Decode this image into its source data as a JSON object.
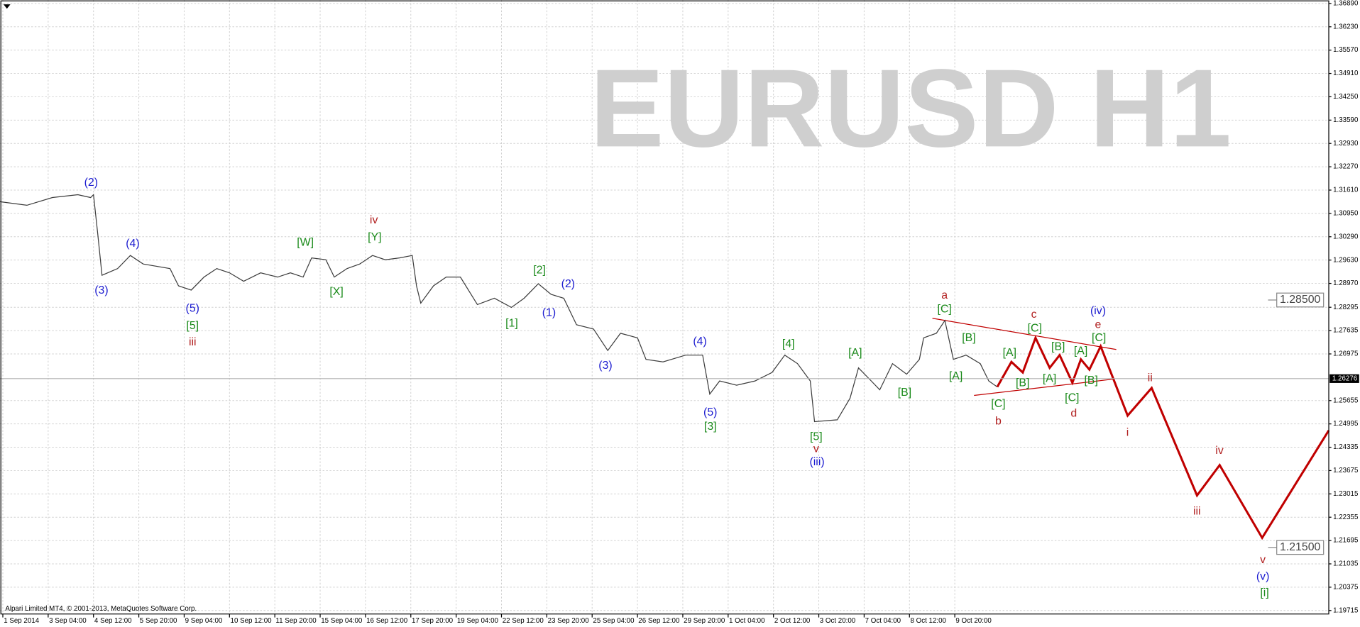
{
  "chart_data": {
    "type": "line",
    "watermark": "EURUSD H1",
    "copyright": "Alpari Limited MT4, © 2001-2013, MetaQuotes Software Corp.",
    "xlim": [
      -2,
      936
    ],
    "ylim": [
      1.19617,
      1.36988
    ],
    "grid": true,
    "xticks": [
      {
        "value": 0,
        "label": "1 Sep 2014"
      },
      {
        "value": 32,
        "label": "3 Sep 04:00"
      },
      {
        "value": 64,
        "label": "4 Sep 12:00"
      },
      {
        "value": 96,
        "label": "5 Sep 20:00"
      },
      {
        "value": 128,
        "label": "9 Sep 04:00"
      },
      {
        "value": 160,
        "label": "10 Sep 12:00"
      },
      {
        "value": 192,
        "label": "11 Sep 20:00"
      },
      {
        "value": 224,
        "label": "15 Sep 04:00"
      },
      {
        "value": 256,
        "label": "16 Sep 12:00"
      },
      {
        "value": 288,
        "label": "17 Sep 20:00"
      },
      {
        "value": 320,
        "label": "19 Sep 04:00"
      },
      {
        "value": 352,
        "label": "22 Sep 12:00"
      },
      {
        "value": 384,
        "label": "23 Sep 20:00"
      },
      {
        "value": 416,
        "label": "25 Sep 04:00"
      },
      {
        "value": 448,
        "label": "26 Sep 12:00"
      },
      {
        "value": 480,
        "label": "29 Sep 20:00"
      },
      {
        "value": 512,
        "label": "1 Oct 04:00"
      },
      {
        "value": 544,
        "label": "2 Oct 12:00"
      },
      {
        "value": 576,
        "label": "3 Oct 20:00"
      },
      {
        "value": 608,
        "label": "7 Oct 04:00"
      },
      {
        "value": 640,
        "label": "8 Oct 12:00"
      },
      {
        "value": 672,
        "label": "9 Oct 20:00"
      }
    ],
    "yticks": [
      {
        "value": 1.3689,
        "label": "1.36890"
      },
      {
        "value": 1.3623,
        "label": "1.36230"
      },
      {
        "value": 1.3557,
        "label": "1.35570"
      },
      {
        "value": 1.3491,
        "label": "1.34910"
      },
      {
        "value": 1.3425,
        "label": "1.34250"
      },
      {
        "value": 1.3359,
        "label": "1.33590"
      },
      {
        "value": 1.3293,
        "label": "1.32930"
      },
      {
        "value": 1.3227,
        "label": "1.32270"
      },
      {
        "value": 1.3161,
        "label": "1.31610"
      },
      {
        "value": 1.3095,
        "label": "1.30950"
      },
      {
        "value": 1.3029,
        "label": "1.30290"
      },
      {
        "value": 1.2963,
        "label": "1.29630"
      },
      {
        "value": 1.2897,
        "label": "1.28970"
      },
      {
        "value": 1.28295,
        "label": "1.28295"
      },
      {
        "value": 1.27635,
        "label": "1.27635"
      },
      {
        "value": 1.26975,
        "label": "1.26975"
      },
      {
        "value": 1.25655,
        "label": "1.25655"
      },
      {
        "value": 1.24995,
        "label": "1.24995"
      },
      {
        "value": 1.24335,
        "label": "1.24335"
      },
      {
        "value": 1.23675,
        "label": "1.23675"
      },
      {
        "value": 1.23015,
        "label": "1.23015"
      },
      {
        "value": 1.22355,
        "label": "1.22355"
      },
      {
        "value": 1.21695,
        "label": "1.21695"
      },
      {
        "value": 1.21035,
        "label": "1.21035"
      },
      {
        "value": 1.20375,
        "label": "1.20375"
      },
      {
        "value": 1.19715,
        "label": "1.19715"
      }
    ],
    "price_labels": [
      {
        "value": 1.285,
        "label": "1.28500",
        "style": "level"
      },
      {
        "value": 1.26276,
        "label": "1.26276",
        "style": "current"
      },
      {
        "value": 1.215,
        "label": "1.21500",
        "style": "level"
      }
    ],
    "series": [
      {
        "color": "#3c3c3c",
        "x": [
          -2,
          17,
          35,
          53,
          62,
          64,
          67,
          70,
          81,
          90,
          99,
          118,
          124,
          133,
          142,
          151,
          160,
          170,
          182,
          194,
          203,
          212,
          218,
          228,
          234,
          243,
          252,
          261,
          270,
          280,
          289,
          292,
          295,
          304,
          313,
          323,
          335,
          347,
          359,
          368,
          378,
          387,
          396,
          405,
          417,
          427,
          436,
          448,
          454,
          466,
          482,
          494,
          499,
          506,
          518,
          531,
          543,
          552,
          561,
          570,
          573,
          589,
          598,
          604,
          613,
          619,
          628,
          638,
          647,
          650,
          659,
          665,
          671,
          680,
          690,
          696,
          702
        ],
        "values": [
          1.3128,
          1.3118,
          1.314,
          1.3148,
          1.314,
          1.3148,
          1.3037,
          1.292,
          1.2939,
          1.2976,
          1.2952,
          1.2939,
          1.289,
          1.2878,
          1.2915,
          1.2939,
          1.2927,
          1.2903,
          1.2927,
          1.2915,
          1.2927,
          1.2915,
          1.2969,
          1.2964,
          1.2915,
          1.2939,
          1.2952,
          1.2976,
          1.2964,
          1.2969,
          1.2976,
          1.289,
          1.2841,
          1.289,
          1.2915,
          1.2915,
          1.2837,
          1.2855,
          1.2829,
          1.2855,
          1.2896,
          1.2866,
          1.2855,
          1.278,
          1.2768,
          1.2707,
          1.2756,
          1.2743,
          1.2682,
          1.2675,
          1.2694,
          1.2694,
          1.2584,
          1.2621,
          1.2609,
          1.2621,
          1.2645,
          1.2694,
          1.267,
          1.2621,
          1.2506,
          1.2511,
          1.2572,
          1.2658,
          1.2621,
          1.2596,
          1.267,
          1.264,
          1.2682,
          1.2743,
          1.2756,
          1.2792,
          1.2682,
          1.2694,
          1.267,
          1.2621,
          1.2604
        ]
      },
      {
        "color": "#c00000",
        "x": [
          702,
          712,
          720,
          729,
          739,
          746,
          755,
          761,
          767,
          775,
          794,
          811,
          843,
          859,
          889,
          936
        ],
        "values": [
          1.2604,
          1.2675,
          1.2645,
          1.2743,
          1.2658,
          1.2694,
          1.2616,
          1.2682,
          1.2653,
          1.2719,
          1.2523,
          1.2601,
          1.2297,
          1.2383,
          1.2177,
          1.2481
        ]
      }
    ],
    "annotations": [
      {
        "text": "(2)",
        "color": "#1c1cd0"
      },
      {
        "text": "(4)",
        "color": "#1c1cd0"
      },
      {
        "text": "(3)",
        "color": "#1c1cd0"
      },
      {
        "text": "(5)",
        "color": "#1c1cd0"
      },
      {
        "text": "[5]",
        "color": "#1a8a1a"
      },
      {
        "text": "iii",
        "color": "#b22222"
      },
      {
        "text": "[W]",
        "color": "#1a8a1a"
      },
      {
        "text": "iv",
        "color": "#b22222"
      },
      {
        "text": "[Y]",
        "color": "#1a8a1a"
      },
      {
        "text": "[X]",
        "color": "#1a8a1a"
      },
      {
        "text": "[2]",
        "color": "#1a8a1a"
      },
      {
        "text": "(2)",
        "color": "#1c1cd0"
      },
      {
        "text": "[1]",
        "color": "#1a8a1a"
      },
      {
        "text": "(1)",
        "color": "#1c1cd0"
      },
      {
        "text": "(3)",
        "color": "#1c1cd0"
      },
      {
        "text": "(4)",
        "color": "#1c1cd0"
      },
      {
        "text": "(5)",
        "color": "#1c1cd0"
      },
      {
        "text": "[3]",
        "color": "#1a8a1a"
      },
      {
        "text": "[4]",
        "color": "#1a8a1a"
      },
      {
        "text": "[5]",
        "color": "#1a8a1a"
      },
      {
        "text": "v",
        "color": "#b22222"
      },
      {
        "text": "(iii)",
        "color": "#1c1cd0"
      },
      {
        "text": "[A]",
        "color": "#1a8a1a"
      },
      {
        "text": "[B]",
        "color": "#1a8a1a"
      },
      {
        "text": "a",
        "color": "#b22222"
      },
      {
        "text": "[C]",
        "color": "#1a8a1a"
      },
      {
        "text": "[B]",
        "color": "#1a8a1a"
      },
      {
        "text": "[A]",
        "color": "#1a8a1a"
      },
      {
        "text": "[C]",
        "color": "#1a8a1a"
      },
      {
        "text": "b",
        "color": "#b22222"
      },
      {
        "text": "c",
        "color": "#b22222"
      },
      {
        "text": "[C]",
        "color": "#1a8a1a"
      },
      {
        "text": "(iv)",
        "color": "#1c1cd0"
      },
      {
        "text": "e",
        "color": "#b22222"
      },
      {
        "text": "[C]",
        "color": "#1a8a1a"
      },
      {
        "text": "[A]",
        "color": "#1a8a1a"
      },
      {
        "text": "[B]",
        "color": "#1a8a1a"
      },
      {
        "text": "[A]",
        "color": "#1a8a1a"
      },
      {
        "text": "[B]",
        "color": "#1a8a1a"
      },
      {
        "text": "[A]",
        "color": "#1a8a1a"
      },
      {
        "text": "[C]",
        "color": "#1a8a1a"
      },
      {
        "text": "[B]",
        "color": "#1a8a1a"
      },
      {
        "text": "d",
        "color": "#b22222"
      },
      {
        "text": "ii",
        "color": "#b22222"
      },
      {
        "text": "i",
        "color": "#b22222"
      },
      {
        "text": "iv",
        "color": "#b22222"
      },
      {
        "text": "iii",
        "color": "#b22222"
      },
      {
        "text": "v",
        "color": "#b22222"
      },
      {
        "text": "(v)",
        "color": "#1c1cd0"
      },
      {
        "text": "[i]",
        "color": "#1a8a1a"
      }
    ]
  }
}
